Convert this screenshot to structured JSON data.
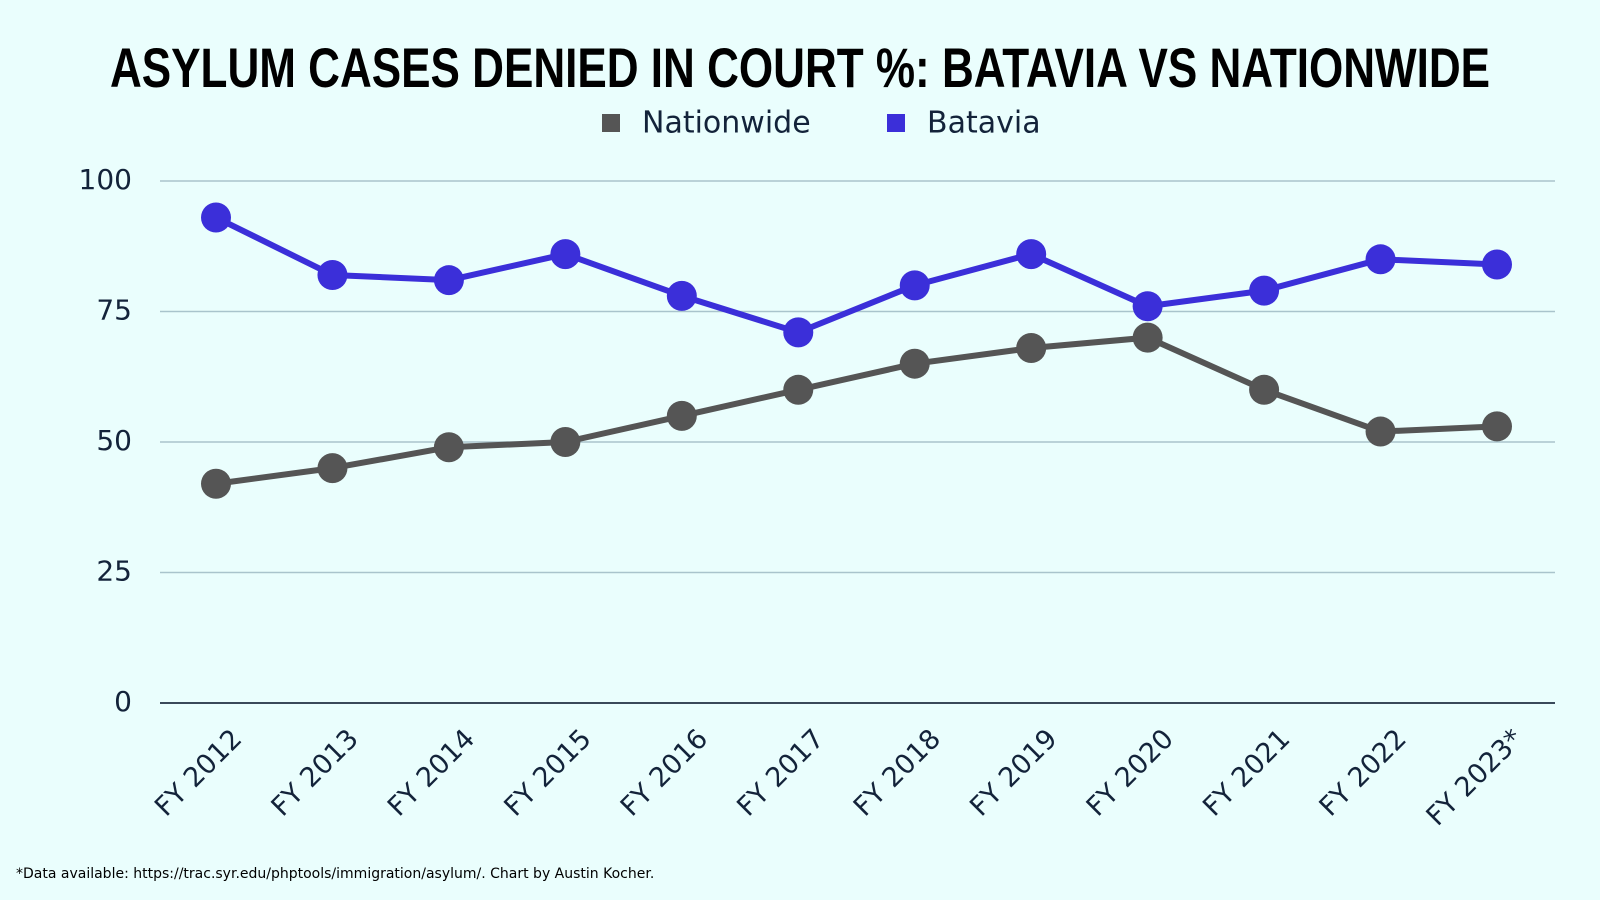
{
  "chart_data": {
    "type": "line",
    "title": "ASYLUM CASES DENIED IN COURT %: BATAVIA VS NATIONWIDE",
    "footnote": "*Data available: https://trac.syr.edu/phptools/immigration/asylum/. Chart by Austin Kocher.",
    "categories": [
      "FY 2012",
      "FY 2013",
      "FY 2014",
      "FY 2015",
      "FY 2016",
      "FY 2017",
      "FY 2018",
      "FY 2019",
      "FY 2020",
      "FY 2021",
      "FY 2022",
      "FY 2023*"
    ],
    "series": [
      {
        "name": "Nationwide",
        "color": "#555555",
        "values": [
          42,
          45,
          49,
          50,
          55,
          60,
          65,
          68,
          70,
          60,
          52,
          53
        ]
      },
      {
        "name": "Batavia",
        "color": "#3b2fd9",
        "values": [
          93,
          82,
          81,
          86,
          78,
          71,
          80,
          86,
          76,
          79,
          85,
          84
        ]
      }
    ],
    "ylim": [
      0,
      100
    ],
    "yticks": [
      0,
      25,
      50,
      75,
      100
    ],
    "grid": true,
    "legend": "top"
  }
}
